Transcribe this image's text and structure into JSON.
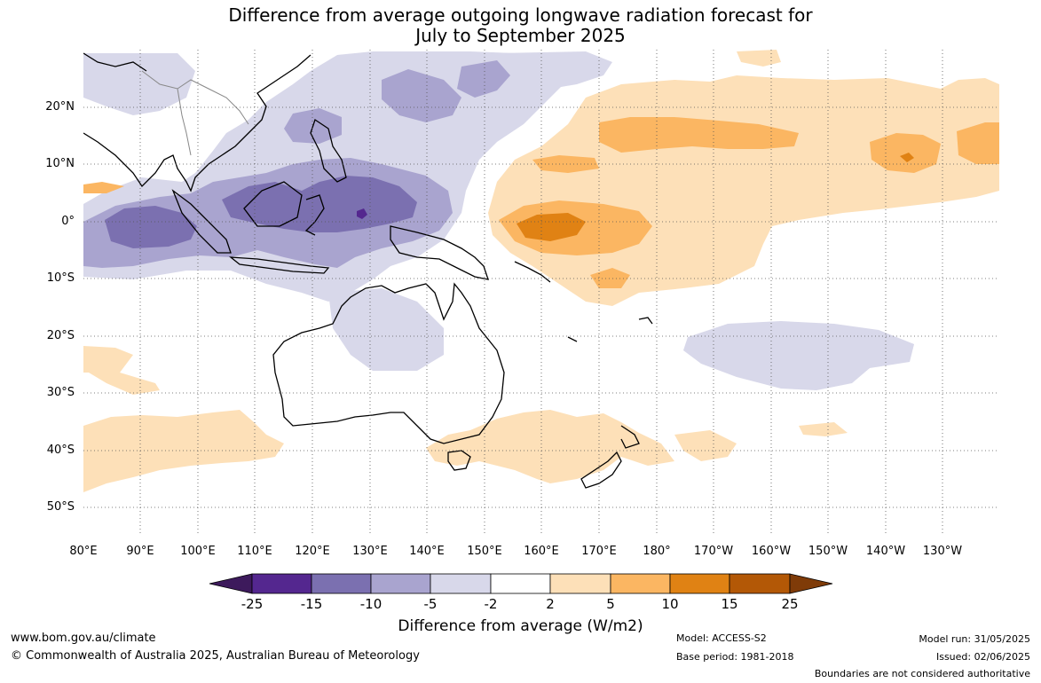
{
  "title": {
    "line1": "Difference from average outgoing longwave radiation forecast for",
    "line2": "July to September 2025"
  },
  "lat_labels": [
    "20°N",
    "10°N",
    "0°",
    "10°S",
    "20°S",
    "30°S",
    "40°S",
    "50°S"
  ],
  "lon_labels": [
    "80°E",
    "90°E",
    "100°E",
    "110°E",
    "120°E",
    "130°E",
    "140°E",
    "150°E",
    "160°E",
    "170°E",
    "180°",
    "170°W",
    "160°W",
    "150°W",
    "140°W",
    "130°W"
  ],
  "colorbar": {
    "labels": [
      "-25",
      "-15",
      "-10",
      "-5",
      "-2",
      "2",
      "5",
      "10",
      "15",
      "25"
    ],
    "colors": [
      "#3d1a5c",
      "#54278f",
      "#7b70b0",
      "#a9a4cf",
      "#d8d8ea",
      "#ffffff",
      "#fde0b8",
      "#fbb662",
      "#e08214",
      "#b35806",
      "#7f3b08"
    ],
    "title": "Difference from average (W/m2)"
  },
  "footer": {
    "website": "www.bom.gov.au/climate",
    "copyright": "© Commonwealth of Australia 2025, Australian Bureau of Meteorology",
    "model": "Model: ACCESS-S2",
    "base_period": "Base period: 1981-2018",
    "model_run": "Model run: 31/05/2025",
    "issued": "Issued: 02/06/2025",
    "disclaimer": "Boundaries are not considered authoritative"
  },
  "map_colors": {
    "suppressed_light": "#fde0b8",
    "suppressed_mid": "#fbb662",
    "suppressed_strong": "#e08214",
    "enhanced_light": "#d8d8ea",
    "enhanced_mid": "#a9a4cf",
    "enhanced_strong": "#7b70b0",
    "enhanced_very_strong": "#54278f"
  }
}
